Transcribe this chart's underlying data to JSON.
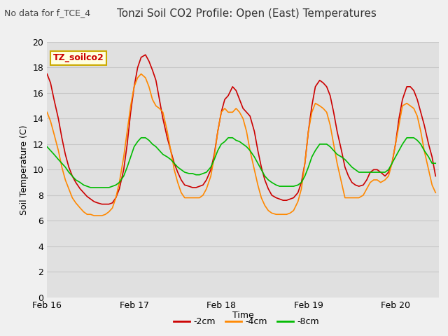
{
  "title": "Tonzi Soil CO2 Profile: Open (East) Temperatures",
  "no_data_label": "No data for f_TCE_4",
  "station_label": "TZ_soilco2",
  "xlabel": "Time",
  "ylabel": "Soil Temperature (C)",
  "ylim": [
    0,
    20
  ],
  "yticks": [
    0,
    2,
    4,
    6,
    8,
    10,
    12,
    14,
    16,
    18,
    20
  ],
  "xlim": [
    0,
    4.5
  ],
  "xtick_positions": [
    0,
    1,
    2,
    3,
    4
  ],
  "xtick_labels": [
    "Feb 16",
    "Feb 17",
    "Feb 18",
    "Feb 19",
    "Feb 20"
  ],
  "fig_bg_color": "#f0f0f0",
  "plot_bg_color": "#e0e0e0",
  "line_2cm_color": "#cc0000",
  "line_4cm_color": "#ff8800",
  "line_8cm_color": "#00bb00",
  "legend_entries": [
    "-2cm",
    "-4cm",
    "-8cm"
  ],
  "series_2cm": {
    "t": [
      0.0,
      0.04,
      0.08,
      0.13,
      0.17,
      0.21,
      0.25,
      0.29,
      0.33,
      0.38,
      0.42,
      0.46,
      0.5,
      0.54,
      0.58,
      0.63,
      0.67,
      0.71,
      0.75,
      0.79,
      0.83,
      0.88,
      0.92,
      0.96,
      1.0,
      1.04,
      1.08,
      1.13,
      1.17,
      1.21,
      1.25,
      1.29,
      1.33,
      1.38,
      1.42,
      1.46,
      1.5,
      1.54,
      1.58,
      1.63,
      1.67,
      1.71,
      1.75,
      1.79,
      1.83,
      1.88,
      1.92,
      1.96,
      2.0,
      2.04,
      2.08,
      2.13,
      2.17,
      2.21,
      2.25,
      2.29,
      2.33,
      2.38,
      2.42,
      2.46,
      2.5,
      2.54,
      2.58,
      2.63,
      2.67,
      2.71,
      2.75,
      2.79,
      2.83,
      2.88,
      2.92,
      2.96,
      3.0,
      3.04,
      3.08,
      3.13,
      3.17,
      3.21,
      3.25,
      3.29,
      3.33,
      3.38,
      3.42,
      3.46,
      3.5,
      3.54,
      3.58,
      3.63,
      3.67,
      3.71,
      3.75,
      3.79,
      3.83,
      3.88,
      3.92,
      3.96,
      4.0,
      4.04,
      4.08,
      4.13,
      4.17,
      4.21,
      4.25,
      4.29,
      4.33,
      4.38,
      4.42,
      4.46
    ],
    "v": [
      17.5,
      16.8,
      15.5,
      14.0,
      12.5,
      11.2,
      10.2,
      9.5,
      9.0,
      8.5,
      8.2,
      7.9,
      7.7,
      7.5,
      7.4,
      7.3,
      7.3,
      7.3,
      7.4,
      7.8,
      8.5,
      10.0,
      12.0,
      14.5,
      16.5,
      18.0,
      18.8,
      19.0,
      18.5,
      17.8,
      17.0,
      15.5,
      14.0,
      12.5,
      11.5,
      10.5,
      9.8,
      9.2,
      8.8,
      8.7,
      8.6,
      8.6,
      8.7,
      8.8,
      9.2,
      10.0,
      11.2,
      13.0,
      14.5,
      15.5,
      15.8,
      16.5,
      16.2,
      15.5,
      14.8,
      14.5,
      14.2,
      13.0,
      11.5,
      10.2,
      9.2,
      8.5,
      8.0,
      7.8,
      7.7,
      7.6,
      7.6,
      7.7,
      7.8,
      8.2,
      9.0,
      10.5,
      13.0,
      15.0,
      16.5,
      17.0,
      16.8,
      16.5,
      15.8,
      14.5,
      13.0,
      11.5,
      10.2,
      9.5,
      9.0,
      8.8,
      8.7,
      8.8,
      9.2,
      9.8,
      10.0,
      10.0,
      9.8,
      9.5,
      9.8,
      10.5,
      12.0,
      14.0,
      15.5,
      16.5,
      16.5,
      16.2,
      15.5,
      14.5,
      13.5,
      12.0,
      11.0,
      9.5
    ]
  },
  "series_4cm": {
    "t": [
      0.0,
      0.04,
      0.08,
      0.13,
      0.17,
      0.21,
      0.25,
      0.29,
      0.33,
      0.38,
      0.42,
      0.46,
      0.5,
      0.54,
      0.58,
      0.63,
      0.67,
      0.71,
      0.75,
      0.79,
      0.83,
      0.88,
      0.92,
      0.96,
      1.0,
      1.04,
      1.08,
      1.13,
      1.17,
      1.21,
      1.25,
      1.29,
      1.33,
      1.38,
      1.42,
      1.46,
      1.5,
      1.54,
      1.58,
      1.63,
      1.67,
      1.71,
      1.75,
      1.79,
      1.83,
      1.88,
      1.92,
      1.96,
      2.0,
      2.04,
      2.08,
      2.13,
      2.17,
      2.21,
      2.25,
      2.29,
      2.33,
      2.38,
      2.42,
      2.46,
      2.5,
      2.54,
      2.58,
      2.63,
      2.67,
      2.71,
      2.75,
      2.79,
      2.83,
      2.88,
      2.92,
      2.96,
      3.0,
      3.04,
      3.08,
      3.13,
      3.17,
      3.21,
      3.25,
      3.29,
      3.33,
      3.38,
      3.42,
      3.46,
      3.5,
      3.54,
      3.58,
      3.63,
      3.67,
      3.71,
      3.75,
      3.79,
      3.83,
      3.88,
      3.92,
      3.96,
      4.0,
      4.04,
      4.08,
      4.13,
      4.17,
      4.21,
      4.25,
      4.29,
      4.33,
      4.38,
      4.42,
      4.46
    ],
    "v": [
      14.5,
      13.8,
      12.8,
      11.5,
      10.2,
      9.2,
      8.5,
      7.8,
      7.4,
      7.0,
      6.7,
      6.5,
      6.5,
      6.4,
      6.4,
      6.4,
      6.5,
      6.7,
      7.0,
      7.8,
      9.0,
      11.0,
      13.0,
      15.0,
      16.5,
      17.2,
      17.5,
      17.2,
      16.5,
      15.5,
      15.0,
      14.8,
      14.5,
      13.0,
      11.5,
      10.0,
      9.0,
      8.2,
      7.8,
      7.8,
      7.8,
      7.8,
      7.8,
      8.0,
      8.5,
      9.5,
      11.0,
      13.0,
      14.5,
      14.8,
      14.5,
      14.5,
      14.8,
      14.5,
      14.0,
      13.0,
      11.5,
      10.0,
      8.8,
      7.8,
      7.2,
      6.8,
      6.6,
      6.5,
      6.5,
      6.5,
      6.5,
      6.6,
      6.8,
      7.5,
      8.5,
      10.5,
      13.0,
      14.5,
      15.2,
      15.0,
      14.8,
      14.5,
      13.5,
      12.0,
      10.5,
      9.0,
      7.8,
      7.8,
      7.8,
      7.8,
      7.8,
      8.0,
      8.5,
      9.0,
      9.2,
      9.2,
      9.0,
      9.2,
      9.5,
      10.5,
      12.0,
      13.5,
      15.0,
      15.2,
      15.0,
      14.8,
      14.2,
      13.0,
      11.5,
      10.0,
      8.8,
      8.2
    ]
  },
  "series_8cm": {
    "t": [
      0.0,
      0.04,
      0.08,
      0.13,
      0.17,
      0.21,
      0.25,
      0.29,
      0.33,
      0.38,
      0.42,
      0.46,
      0.5,
      0.54,
      0.58,
      0.63,
      0.67,
      0.71,
      0.75,
      0.79,
      0.83,
      0.88,
      0.92,
      0.96,
      1.0,
      1.04,
      1.08,
      1.13,
      1.17,
      1.21,
      1.25,
      1.29,
      1.33,
      1.38,
      1.42,
      1.46,
      1.5,
      1.54,
      1.58,
      1.63,
      1.67,
      1.71,
      1.75,
      1.79,
      1.83,
      1.88,
      1.92,
      1.96,
      2.0,
      2.04,
      2.08,
      2.13,
      2.17,
      2.21,
      2.25,
      2.29,
      2.33,
      2.38,
      2.42,
      2.46,
      2.5,
      2.54,
      2.58,
      2.63,
      2.67,
      2.71,
      2.75,
      2.79,
      2.83,
      2.88,
      2.92,
      2.96,
      3.0,
      3.04,
      3.08,
      3.13,
      3.17,
      3.21,
      3.25,
      3.29,
      3.33,
      3.38,
      3.42,
      3.46,
      3.5,
      3.54,
      3.58,
      3.63,
      3.67,
      3.71,
      3.75,
      3.79,
      3.83,
      3.88,
      3.92,
      3.96,
      4.0,
      4.04,
      4.08,
      4.13,
      4.17,
      4.21,
      4.25,
      4.29,
      4.33,
      4.38,
      4.42,
      4.46
    ],
    "v": [
      11.8,
      11.5,
      11.2,
      10.8,
      10.5,
      10.2,
      9.8,
      9.5,
      9.2,
      9.0,
      8.8,
      8.7,
      8.6,
      8.6,
      8.6,
      8.6,
      8.6,
      8.6,
      8.7,
      8.8,
      9.0,
      9.5,
      10.2,
      11.0,
      11.8,
      12.2,
      12.5,
      12.5,
      12.3,
      12.0,
      11.8,
      11.5,
      11.2,
      11.0,
      10.8,
      10.5,
      10.2,
      10.0,
      9.8,
      9.7,
      9.7,
      9.6,
      9.6,
      9.7,
      9.8,
      10.2,
      10.8,
      11.5,
      12.0,
      12.2,
      12.5,
      12.5,
      12.3,
      12.2,
      12.0,
      11.8,
      11.5,
      11.0,
      10.5,
      10.0,
      9.5,
      9.2,
      9.0,
      8.8,
      8.7,
      8.7,
      8.7,
      8.7,
      8.7,
      8.8,
      9.0,
      9.5,
      10.2,
      11.0,
      11.5,
      12.0,
      12.0,
      12.0,
      11.8,
      11.5,
      11.2,
      11.0,
      10.8,
      10.5,
      10.2,
      10.0,
      9.8,
      9.8,
      9.8,
      9.8,
      9.8,
      9.8,
      9.8,
      9.8,
      10.0,
      10.5,
      11.0,
      11.5,
      12.0,
      12.5,
      12.5,
      12.5,
      12.3,
      12.0,
      11.5,
      11.0,
      10.5,
      10.5
    ]
  }
}
